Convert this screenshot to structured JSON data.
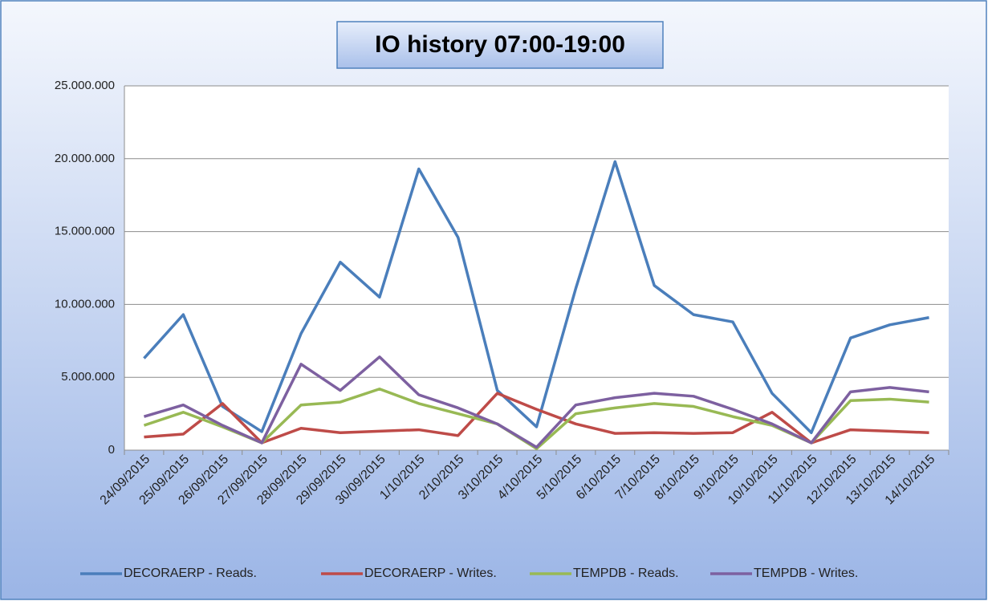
{
  "chart_data": {
    "type": "line",
    "title": "IO history 07:00-19:00",
    "categories": [
      "24/09/2015",
      "25/09/2015",
      "26/09/2015",
      "27/09/2015",
      "28/09/2015",
      "29/09/2015",
      "30/09/2015",
      "1/10/2015",
      "2/10/2015",
      "3/10/2015",
      "4/10/2015",
      "5/10/2015",
      "6/10/2015",
      "7/10/2015",
      "8/10/2015",
      "9/10/2015",
      "10/10/2015",
      "11/10/2015",
      "12/10/2015",
      "13/10/2015",
      "14/10/2015"
    ],
    "series": [
      {
        "name": "DECORAERP - Reads.",
        "color": "#4a7ebb",
        "values": [
          6300000,
          9300000,
          3000000,
          1270000,
          8000000,
          12900000,
          10500000,
          19300000,
          14600000,
          4100000,
          1600000,
          11100000,
          19800000,
          11300000,
          9300000,
          8800000,
          3900000,
          1200000,
          7700000,
          8600000,
          9100000
        ]
      },
      {
        "name": "DECORAERP - Writes.",
        "color": "#be4b48",
        "values": [
          900000,
          1100000,
          3200000,
          500000,
          1500000,
          1200000,
          1300000,
          1400000,
          1000000,
          3900000,
          2800000,
          1800000,
          1150000,
          1200000,
          1150000,
          1200000,
          2600000,
          500000,
          1400000,
          1300000,
          1200000
        ]
      },
      {
        "name": "TEMPDB - Reads.",
        "color": "#98b954",
        "values": [
          1700000,
          2600000,
          1600000,
          500000,
          3100000,
          3300000,
          4200000,
          3200000,
          2500000,
          1800000,
          100000,
          2500000,
          2900000,
          3200000,
          3000000,
          2300000,
          1700000,
          500000,
          3400000,
          3500000,
          3300000
        ]
      },
      {
        "name": "TEMPDB - Writes.",
        "color": "#7d60a0",
        "values": [
          2300000,
          3100000,
          1700000,
          500000,
          5900000,
          4100000,
          6400000,
          3800000,
          2900000,
          1800000,
          200000,
          3100000,
          3600000,
          3900000,
          3700000,
          2800000,
          1800000,
          500000,
          4000000,
          4300000,
          4000000
        ]
      }
    ],
    "ylim": [
      0,
      25000000
    ],
    "yticks": [
      0,
      {
        "value": 5000000,
        "label": "5.000.000"
      },
      {
        "value": 10000000,
        "label": "10.000.000"
      },
      {
        "value": 15000000,
        "label": "15.000.000"
      },
      {
        "value": 20000000,
        "label": "20.000.000"
      },
      {
        "value": 25000000,
        "label": "25.000.000"
      }
    ],
    "grid": true,
    "legend": "bottom"
  }
}
